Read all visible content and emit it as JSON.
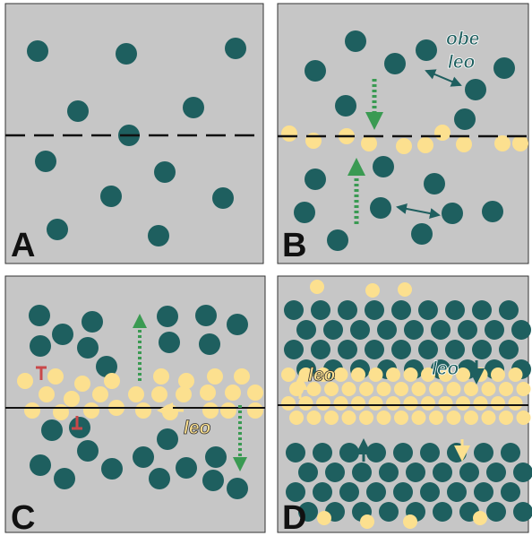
{
  "panels": [
    {
      "label": "A"
    },
    {
      "label": "B",
      "annotations": [
        "obe",
        "leo"
      ]
    },
    {
      "label": "C",
      "annotations": [
        "leo"
      ]
    },
    {
      "label": "D",
      "annotations": [
        "leo",
        "leo"
      ]
    }
  ]
}
